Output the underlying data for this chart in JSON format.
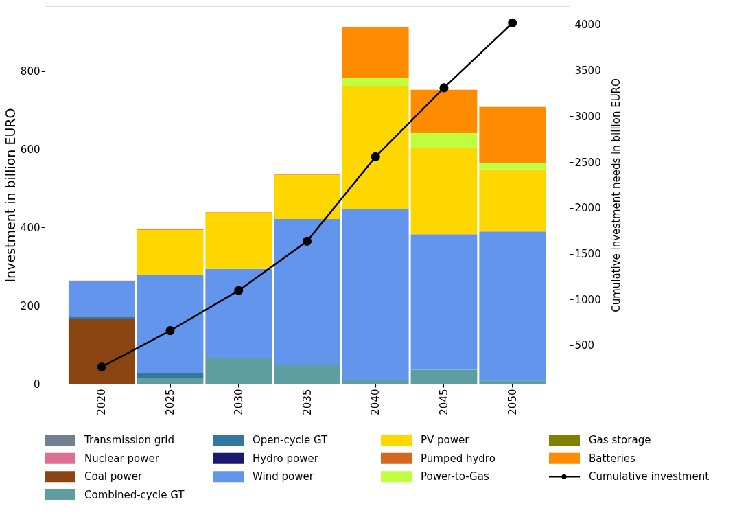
{
  "chart_data": {
    "type": "bar",
    "stacked": true,
    "categories": [
      "2020",
      "2025",
      "2030",
      "2035",
      "2040",
      "2045",
      "2050"
    ],
    "ylabel": "Investment in billion EURO",
    "y2label": "Cumulative investment needs in billion EURO",
    "ylim": [
      0,
      967
    ],
    "yticks": [
      0,
      200,
      400,
      600,
      800
    ],
    "y2lim": [
      80,
      4202
    ],
    "y2ticks": [
      500,
      1000,
      1500,
      2000,
      2500,
      3000,
      3500,
      4000
    ],
    "grid": false,
    "legend": "bottom",
    "series": [
      {
        "name": "Transmission grid",
        "color": "#708090",
        "values": [
          0,
          0,
          0,
          0,
          0,
          0,
          0
        ]
      },
      {
        "name": "Nuclear power",
        "color": "#db7093",
        "values": [
          0,
          0,
          0,
          0,
          0,
          0,
          0
        ]
      },
      {
        "name": "Coal power",
        "color": "#8b4513",
        "values": [
          166,
          0,
          0,
          0,
          0,
          0,
          0
        ]
      },
      {
        "name": "Combined-cycle GT",
        "color": "#5f9ea0",
        "values": [
          0,
          16,
          65,
          49,
          9,
          36,
          7
        ]
      },
      {
        "name": "Open-cycle GT",
        "color": "#31779f",
        "values": [
          6,
          12,
          0,
          0,
          0,
          0,
          1
        ]
      },
      {
        "name": "Hydro power",
        "color": "#191970",
        "values": [
          0,
          0,
          0,
          0,
          0,
          0,
          0
        ]
      },
      {
        "name": "Wind power",
        "color": "#6495ed",
        "values": [
          90,
          250,
          229,
          373,
          438,
          347,
          382
        ]
      },
      {
        "name": "PV power",
        "color": "#ffd700",
        "values": [
          0,
          116,
          144,
          113,
          316,
          222,
          159
        ]
      },
      {
        "name": "Pumped hydro",
        "color": "#d2691e",
        "values": [
          0,
          0,
          0,
          1,
          0,
          0,
          0
        ]
      },
      {
        "name": "Power-to-Gas",
        "color": "#bfff3f",
        "values": [
          0,
          0,
          0,
          0,
          21,
          37,
          16
        ]
      },
      {
        "name": "Gas storage",
        "color": "#808000",
        "values": [
          0,
          0,
          0,
          0,
          0,
          0,
          0
        ]
      },
      {
        "name": "Batteries",
        "color": "#ff8c00",
        "values": [
          2,
          2,
          1,
          2,
          129,
          111,
          144
        ]
      },
      {
        "name": "Cumulative investment",
        "color": "#000000",
        "type": "line",
        "axis": "y2",
        "marker": "circle",
        "line_style": "solid",
        "values": [
          264,
          660,
          1098,
          1636,
          2558,
          3311,
          4020
        ]
      }
    ]
  }
}
